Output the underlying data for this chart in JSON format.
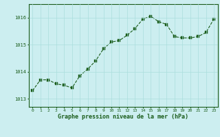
{
  "x": [
    0,
    1,
    2,
    3,
    4,
    5,
    6,
    7,
    8,
    9,
    10,
    11,
    12,
    13,
    14,
    15,
    16,
    17,
    18,
    19,
    20,
    21,
    22,
    23
  ],
  "y": [
    1013.3,
    1013.7,
    1013.7,
    1013.55,
    1013.5,
    1013.4,
    1013.85,
    1014.1,
    1014.4,
    1014.85,
    1015.1,
    1015.15,
    1015.35,
    1015.6,
    1015.95,
    1016.05,
    1015.85,
    1015.75,
    1015.3,
    1015.25,
    1015.25,
    1015.3,
    1015.45,
    1015.95
  ],
  "line_color": "#1a5c1a",
  "marker_color": "#1a5c1a",
  "background_color": "#cceef0",
  "grid_color": "#aadddd",
  "xlabel": "Graphe pression niveau de la mer (hPa)",
  "tick_color": "#1a5c1a",
  "yticks": [
    1013,
    1014,
    1015,
    1016
  ],
  "ylim": [
    1012.7,
    1016.5
  ],
  "xlim": [
    -0.5,
    23.5
  ],
  "xticks": [
    0,
    1,
    2,
    3,
    4,
    5,
    6,
    7,
    8,
    9,
    10,
    11,
    12,
    13,
    14,
    15,
    16,
    17,
    18,
    19,
    20,
    21,
    22,
    23
  ],
  "border_color": "#1a5c1a",
  "marker_size": 2.5,
  "line_width": 0.8
}
